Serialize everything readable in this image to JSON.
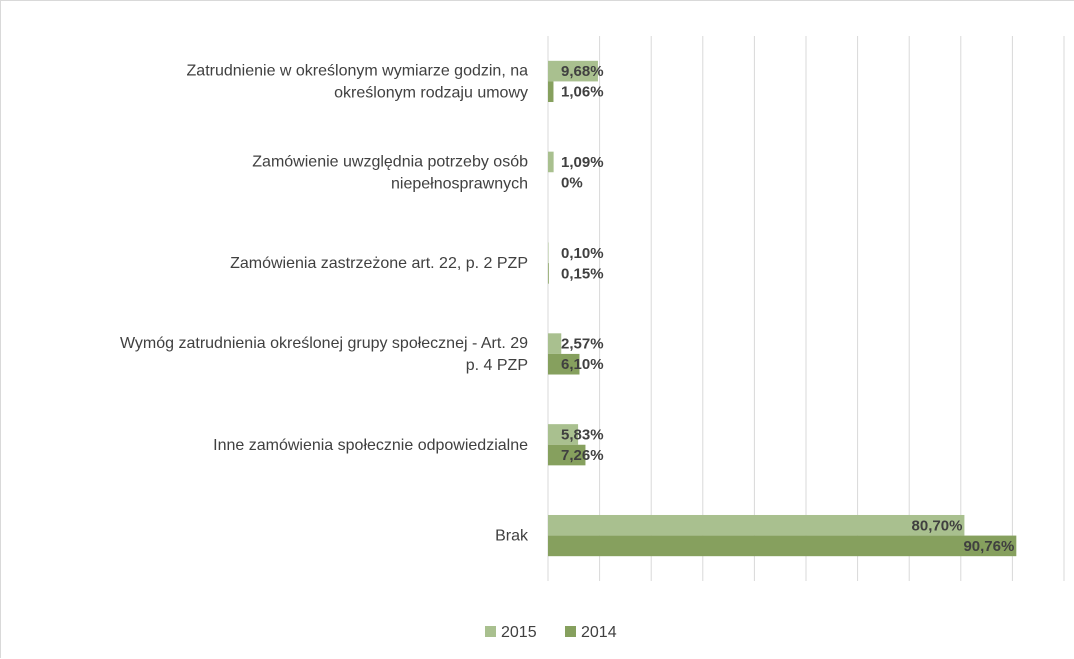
{
  "chart_data": {
    "type": "bar",
    "orientation": "horizontal",
    "categories": [
      [
        "Zatrudnienie w określonym wymiarze godzin, na",
        "określonym rodzaju umowy"
      ],
      [
        "Zamówienie uwzględnia potrzeby osób",
        "niepełnosprawnych"
      ],
      [
        "Zamówienia zastrzeżone art. 22, p. 2 PZP"
      ],
      [
        "Wymóg zatrudnienia określonej grupy społecznej - Art. 29",
        "p. 4 PZP"
      ],
      [
        "Inne zamówienia społecznie odpowiedzialne"
      ],
      [
        "Brak"
      ]
    ],
    "series": [
      {
        "name": "2015",
        "color": "#a9c08f",
        "values": [
          9.68,
          1.09,
          0.1,
          2.57,
          5.83,
          80.7
        ],
        "labels": [
          "9,68%",
          "1,09%",
          "0,10%",
          "2,57%",
          "5,83%",
          "80,70%"
        ]
      },
      {
        "name": "2014",
        "color": "#86a05e",
        "values": [
          1.06,
          0,
          0.15,
          6.1,
          7.26,
          90.76
        ],
        "labels": [
          "1,06%",
          "0%",
          "0,15%",
          "6,10%",
          "7,26%",
          "90,76%"
        ]
      }
    ],
    "xlim": [
      0,
      100
    ],
    "grid": true,
    "legend": "bottom"
  }
}
